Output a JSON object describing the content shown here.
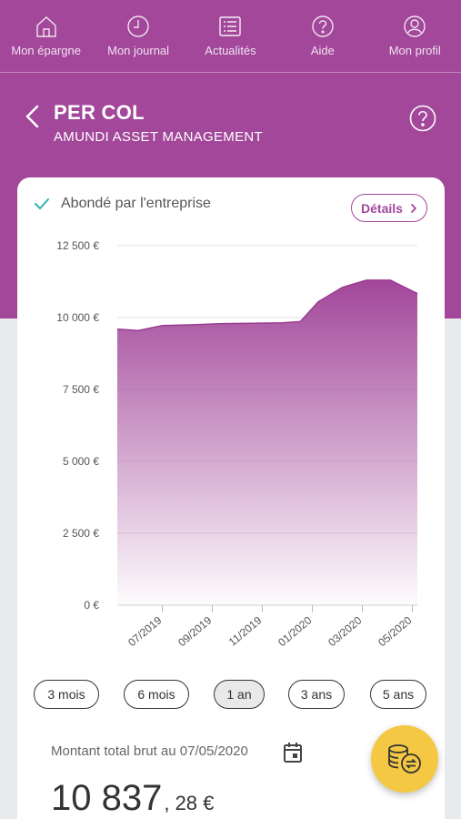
{
  "nav": {
    "items": [
      {
        "label": "Mon épargne",
        "icon": "home-icon"
      },
      {
        "label": "Mon journal",
        "icon": "clock-icon"
      },
      {
        "label": "Actualités",
        "icon": "news-icon"
      },
      {
        "label": "Aide",
        "icon": "help-icon"
      },
      {
        "label": "Mon profil",
        "icon": "profile-icon"
      }
    ]
  },
  "header": {
    "title": "PER COL",
    "subtitle": "AMUNDI ASSET MANAGEMENT"
  },
  "card": {
    "abonde_label": "Abondé par l'entreprise",
    "details_label": "Détails",
    "ranges": [
      "3 mois",
      "6 mois",
      "1 an",
      "3 ans",
      "5 ans"
    ],
    "active_range": "1 an",
    "total_label": "Montant total brut au 07/05/2020",
    "amount_int": "10 837",
    "amount_dec": ", 28 €"
  },
  "colors": {
    "brand": "#a2479a",
    "fab": "#f5c843",
    "check": "#2bb5b0"
  },
  "chart_data": {
    "type": "area",
    "y_tick_labels": [
      "12 500 €",
      "10 000 €",
      "7 500 €",
      "5 000 €",
      "2 500 €",
      "0 €"
    ],
    "y_ticks": [
      12500,
      10000,
      7500,
      5000,
      2500,
      0
    ],
    "x_tick_labels": [
      "07/2019",
      "09/2019",
      "11/2019",
      "01/2020",
      "03/2020",
      "05/2020"
    ],
    "x_ticks": [
      2019.5,
      2019.6667,
      2019.8333,
      2020.0,
      2020.1667,
      2020.3333
    ],
    "ylim": [
      0,
      12500
    ],
    "xlim": [
      2019.35,
      2020.35
    ],
    "x": [
      2019.35,
      2019.42,
      2019.5,
      2019.6,
      2019.7,
      2019.8,
      2019.9,
      2019.96,
      2020.02,
      2020.1,
      2020.18,
      2020.26,
      2020.35
    ],
    "values": [
      9600,
      9550,
      9720,
      9750,
      9790,
      9800,
      9820,
      9860,
      10550,
      11050,
      11300,
      11300,
      10837
    ],
    "grid": true
  }
}
